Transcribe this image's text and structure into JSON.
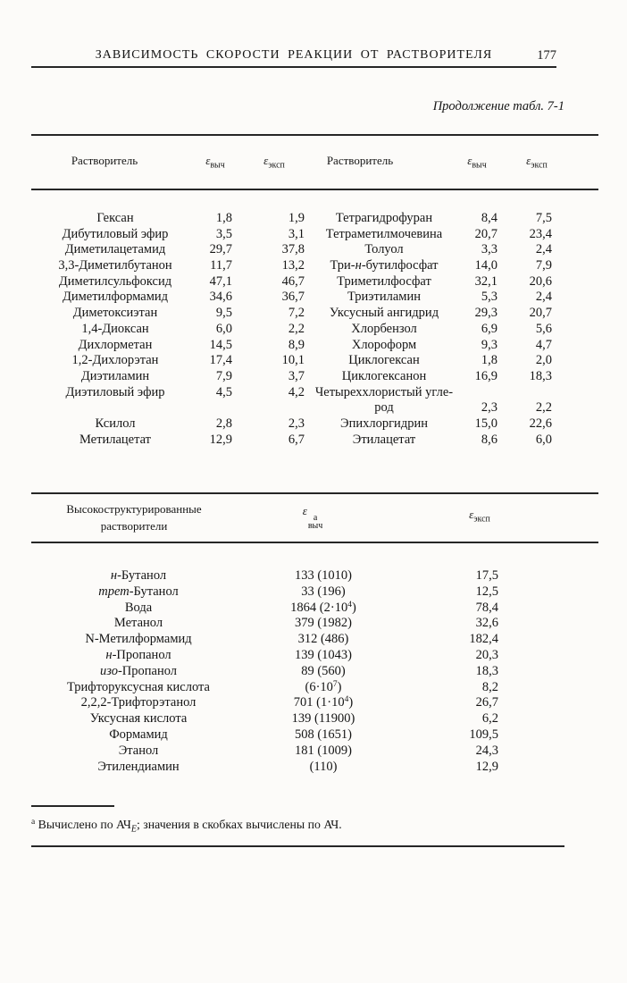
{
  "header": {
    "title": "ЗАВИСИМОСТЬ СКОРОСТИ РЕАКЦИИ ОТ РАСТВОРИТЕЛЯ",
    "page_number": "177"
  },
  "caption": "Продолжение табл. 7-1",
  "table1": {
    "headers": {
      "solvent_left": "Растворитель",
      "eps_calc_left": [
        {
          "t": "ε",
          "i": true
        },
        {
          "t": "выч",
          "sub": true
        }
      ],
      "eps_exp_left": [
        {
          "t": "ε",
          "i": true
        },
        {
          "t": "эксп",
          "sub": true
        }
      ],
      "solvent_right": "Растворитель",
      "eps_calc_right": [
        {
          "t": "ε",
          "i": true
        },
        {
          "t": "выч",
          "sub": true
        }
      ],
      "eps_exp_right": [
        {
          "t": "ε",
          "i": true
        },
        {
          "t": "эксп",
          "sub": true
        }
      ]
    },
    "rows": [
      {
        "l": {
          "name": "Гексан",
          "calc": "1,8",
          "exp": "1,9"
        },
        "r": {
          "name": "Тетрагидрофуран",
          "calc": "8,4",
          "exp": "7,5"
        }
      },
      {
        "l": {
          "name": "Дибутиловый эфир",
          "calc": "3,5",
          "exp": "3,1"
        },
        "r": {
          "name": "Тетраметилмочевина",
          "calc": "20,7",
          "exp": "23,4"
        }
      },
      {
        "l": {
          "name": "Диметилацетамид",
          "calc": "29,7",
          "exp": "37,8"
        },
        "r": {
          "name": "Толуол",
          "calc": "3,3",
          "exp": "2,4"
        }
      },
      {
        "l": {
          "name": "3,3-Диметилбутанон",
          "calc": "11,7",
          "exp": "13,2"
        },
        "r": {
          "name": [
            {
              "t": "Три-"
            },
            {
              "t": "н",
              "i": true
            },
            {
              "t": "-бутилфосфат"
            }
          ],
          "calc": "14,0",
          "exp": "7,9"
        }
      },
      {
        "l": {
          "name": "Диметилсульфоксид",
          "calc": "47,1",
          "exp": "46,7"
        },
        "r": {
          "name": "Триметилфосфат",
          "calc": "32,1",
          "exp": "20,6"
        }
      },
      {
        "l": {
          "name": "Диметилформамид",
          "calc": "34,6",
          "exp": "36,7"
        },
        "r": {
          "name": "Триэтиламин",
          "calc": "5,3",
          "exp": "2,4"
        }
      },
      {
        "l": {
          "name": "Диметоксиэтан",
          "calc": "9,5",
          "exp": "7,2"
        },
        "r": {
          "name": "Уксусный ангидрид",
          "calc": "29,3",
          "exp": "20,7"
        }
      },
      {
        "l": {
          "name": "1,4-Диоксан",
          "calc": "6,0",
          "exp": "2,2"
        },
        "r": {
          "name": "Хлорбензол",
          "calc": "6,9",
          "exp": "5,6"
        }
      },
      {
        "l": {
          "name": "Дихлорметан",
          "calc": "14,5",
          "exp": "8,9"
        },
        "r": {
          "name": "Хлороформ",
          "calc": "9,3",
          "exp": "4,7"
        }
      },
      {
        "l": {
          "name": "1,2-Дихлорэтан",
          "calc": "17,4",
          "exp": "10,1"
        },
        "r": {
          "name": "Циклогексан",
          "calc": "1,8",
          "exp": "2,0"
        }
      },
      {
        "l": {
          "name": "Диэтиламин",
          "calc": "7,9",
          "exp": "3,7"
        },
        "r": {
          "name": "Циклогексанон",
          "calc": "16,9",
          "exp": "18,3"
        }
      },
      {
        "l": {
          "name": "Диэтиловый эфир",
          "calc": "4,5",
          "exp": "4,2"
        },
        "r": {
          "name": "Четыреххлористый угле-",
          "calc": "",
          "exp": ""
        }
      },
      {
        "l": {
          "name": "",
          "calc": "",
          "exp": ""
        },
        "r": {
          "name": "род",
          "calc": "2,3",
          "exp": "2,2"
        }
      },
      {
        "l": {
          "name": "Ксилол",
          "calc": "2,8",
          "exp": "2,3"
        },
        "r": {
          "name": "Эпихлоргидрин",
          "calc": "15,0",
          "exp": "22,6"
        }
      },
      {
        "l": {
          "name": "Метилацетат",
          "calc": "12,9",
          "exp": "6,7"
        },
        "r": {
          "name": "Этилацетат",
          "calc": "8,6",
          "exp": "6,0"
        }
      }
    ]
  },
  "table2": {
    "headers": {
      "solvent_line1": "Высокоструктурированные",
      "solvent_line2": "растворители",
      "eps_calc": [
        {
          "t": "ε",
          "i": true
        },
        {
          "stack": {
            "sup": "а",
            "sub": "выч"
          }
        }
      ],
      "eps_exp": [
        {
          "t": "ε",
          "i": true
        },
        {
          "t": "эксп",
          "sub": true
        }
      ]
    },
    "rows": [
      {
        "name": [
          {
            "t": "н",
            "i": true
          },
          {
            "t": "-Бутанол"
          }
        ],
        "calc": "133 (1010)",
        "exp": "17,5"
      },
      {
        "name": [
          {
            "t": "трет",
            "i": true
          },
          {
            "t": "-Бутанол"
          }
        ],
        "calc": "33 (196)",
        "exp": "12,5"
      },
      {
        "name": "Вода",
        "calc": [
          {
            "t": "1864 (2·10"
          },
          {
            "t": "4",
            "sup": true
          },
          {
            "t": ")"
          }
        ],
        "exp": "78,4"
      },
      {
        "name": "Метанол",
        "calc": "379 (1982)",
        "exp": "32,6"
      },
      {
        "name": "N-Метилформамид",
        "calc": "312 (486)",
        "exp": "182,4"
      },
      {
        "name": [
          {
            "t": "н",
            "i": true
          },
          {
            "t": "-Пропанол"
          }
        ],
        "calc": "139 (1043)",
        "exp": "20,3"
      },
      {
        "name": [
          {
            "t": "изо",
            "i": true
          },
          {
            "t": "-Пропанол"
          }
        ],
        "calc": "89 (560)",
        "exp": "18,3"
      },
      {
        "name": "Трифторуксусная кислота",
        "calc": [
          {
            "t": "(6·10"
          },
          {
            "t": "7",
            "sup": true
          },
          {
            "t": ")"
          }
        ],
        "exp": "8,2"
      },
      {
        "name": "2,2,2-Трифторэтанол",
        "calc": [
          {
            "t": "701 (1·10"
          },
          {
            "t": "4",
            "sup": true
          },
          {
            "t": ")"
          }
        ],
        "exp": "26,7"
      },
      {
        "name": "Уксусная кислота",
        "calc": "139 (11900)",
        "exp": "6,2"
      },
      {
        "name": "Формамид",
        "calc": "508 (1651)",
        "exp": "109,5"
      },
      {
        "name": "Этанол",
        "calc": "181 (1009)",
        "exp": "24,3"
      },
      {
        "name": "Этилендиамин",
        "calc": "(110)",
        "exp": "12,9"
      }
    ]
  },
  "footnote": [
    {
      "t": "а",
      "sup": true
    },
    {
      "t": " Вычислено по АЧ"
    },
    {
      "t": "E",
      "sub": true,
      "i": true
    },
    {
      "t": "; значения в скобках вычислены по АЧ."
    }
  ]
}
